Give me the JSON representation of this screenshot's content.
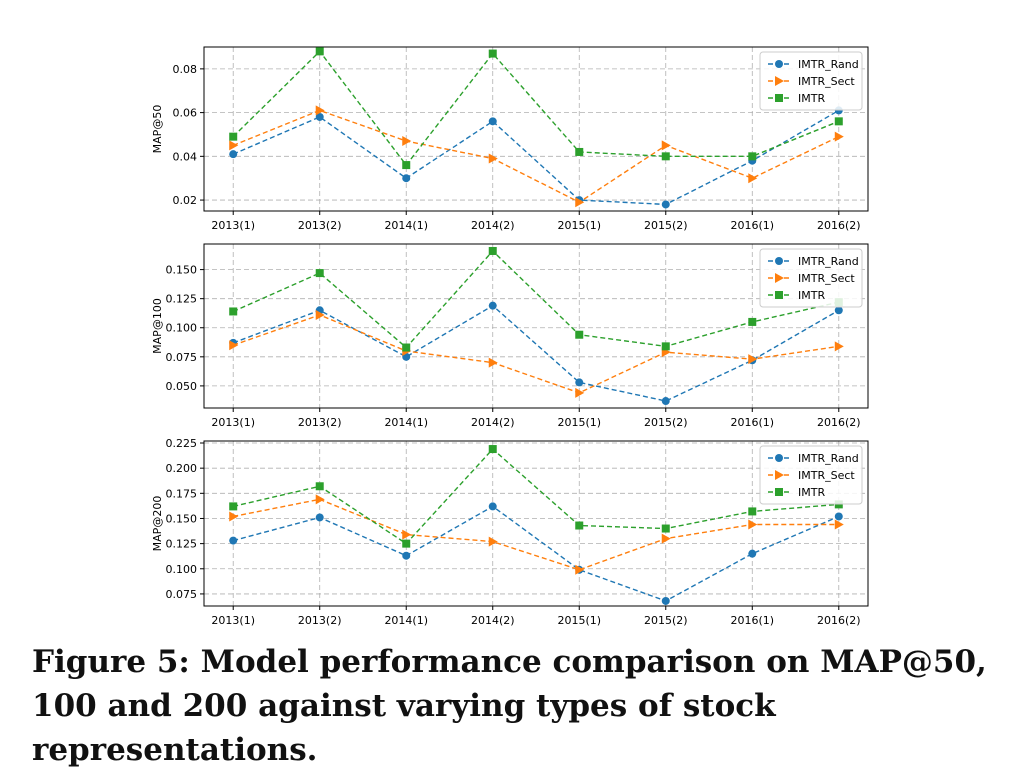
{
  "figure": {
    "caption": "Figure 5: Model performance comparison on MAP@50, 100 and 200 against varying types of stock representations."
  },
  "chart_data": [
    {
      "type": "line",
      "ylabel": "MAP@50",
      "categories": [
        "2013(1)",
        "2013(2)",
        "2014(1)",
        "2014(2)",
        "2015(1)",
        "2015(2)",
        "2016(1)",
        "2016(2)"
      ],
      "ylim": [
        0.015,
        0.09
      ],
      "yticks": [
        0.02,
        0.04,
        0.06,
        0.08
      ],
      "grid": true,
      "legend": "top-right",
      "series": [
        {
          "name": "IMTR_Rand",
          "color": "#1f77b4",
          "marker": "circle",
          "values": [
            0.041,
            0.058,
            0.03,
            0.056,
            0.02,
            0.018,
            0.038,
            0.061
          ]
        },
        {
          "name": "IMTR_Sect",
          "color": "#ff7f0e",
          "marker": "triangle-right",
          "values": [
            0.045,
            0.061,
            0.047,
            0.039,
            0.019,
            0.045,
            0.03,
            0.049
          ]
        },
        {
          "name": "IMTR",
          "color": "#2ca02c",
          "marker": "square",
          "values": [
            0.049,
            0.088,
            0.036,
            0.087,
            0.042,
            0.04,
            0.04,
            0.056
          ]
        }
      ]
    },
    {
      "type": "line",
      "ylabel": "MAP@100",
      "categories": [
        "2013(1)",
        "2013(2)",
        "2014(1)",
        "2014(2)",
        "2015(1)",
        "2015(2)",
        "2016(1)",
        "2016(2)"
      ],
      "ylim": [
        0.031,
        0.172
      ],
      "yticks": [
        0.05,
        0.075,
        0.1,
        0.125,
        0.15
      ],
      "grid": true,
      "legend": "top-right",
      "series": [
        {
          "name": "IMTR_Rand",
          "color": "#1f77b4",
          "marker": "circle",
          "values": [
            0.087,
            0.115,
            0.075,
            0.119,
            0.053,
            0.037,
            0.072,
            0.115
          ]
        },
        {
          "name": "IMTR_Sect",
          "color": "#ff7f0e",
          "marker": "triangle-right",
          "values": [
            0.085,
            0.111,
            0.08,
            0.07,
            0.044,
            0.079,
            0.073,
            0.084
          ]
        },
        {
          "name": "IMTR",
          "color": "#2ca02c",
          "marker": "square",
          "values": [
            0.114,
            0.147,
            0.083,
            0.166,
            0.094,
            0.084,
            0.105,
            0.122
          ]
        }
      ]
    },
    {
      "type": "line",
      "ylabel": "MAP@200",
      "categories": [
        "2013(1)",
        "2013(2)",
        "2014(1)",
        "2014(2)",
        "2015(1)",
        "2015(2)",
        "2016(1)",
        "2016(2)"
      ],
      "ylim": [
        0.063,
        0.227
      ],
      "yticks": [
        0.075,
        0.1,
        0.125,
        0.15,
        0.175,
        0.2,
        0.225
      ],
      "grid": true,
      "legend": "top-right",
      "series": [
        {
          "name": "IMTR_Rand",
          "color": "#1f77b4",
          "marker": "circle",
          "values": [
            0.128,
            0.151,
            0.113,
            0.162,
            0.099,
            0.068,
            0.115,
            0.152
          ]
        },
        {
          "name": "IMTR_Sect",
          "color": "#ff7f0e",
          "marker": "triangle-right",
          "values": [
            0.152,
            0.169,
            0.134,
            0.127,
            0.099,
            0.13,
            0.144,
            0.144
          ]
        },
        {
          "name": "IMTR",
          "color": "#2ca02c",
          "marker": "square",
          "values": [
            0.162,
            0.182,
            0.125,
            0.219,
            0.143,
            0.14,
            0.157,
            0.164
          ]
        }
      ]
    }
  ]
}
